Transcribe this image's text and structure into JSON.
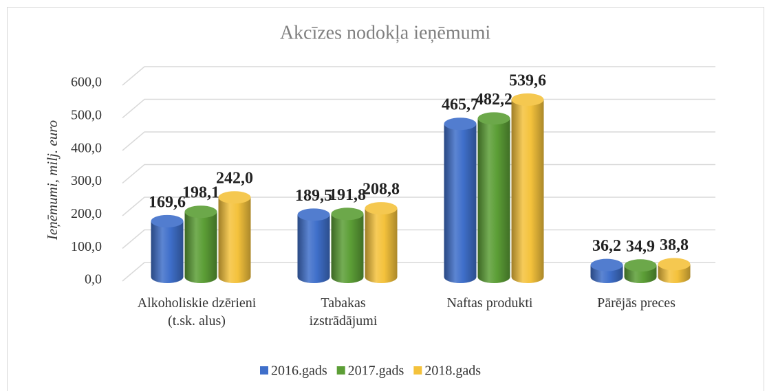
{
  "chart_data": {
    "type": "bar3d",
    "title": "Akcīzes nodokļa ieņēmumi",
    "y_label": "Ieņēmumi, milj. euro",
    "categories": [
      "Alkoholiskie dzērieni (t.sk. alus)",
      "Tabakas izstrādājumi",
      "Naftas produkti",
      "Pārējās preces"
    ],
    "series": [
      {
        "name": "2016.gads",
        "color": "#3f6fca",
        "values": [
          169.6,
          189.5,
          465.7,
          36.2
        ],
        "value_labels": [
          "169,6",
          "189,5",
          "465,7",
          "36,2"
        ]
      },
      {
        "name": "2017.gads",
        "color": "#5c9e36",
        "values": [
          198.1,
          191.8,
          482.2,
          34.9
        ],
        "value_labels": [
          "198,1",
          "191,8",
          "482,2",
          "34,9"
        ]
      },
      {
        "name": "2018.gads",
        "color": "#f4c23c",
        "values": [
          242.0,
          208.8,
          539.6,
          38.8
        ],
        "value_labels": [
          "242,0",
          "208,8",
          "539,6",
          "38,8"
        ]
      }
    ],
    "ylim": [
      0,
      600
    ],
    "yticks": [
      {
        "value": 0,
        "label": "0,0"
      },
      {
        "value": 100,
        "label": "100,0"
      },
      {
        "value": 200,
        "label": "200,0"
      },
      {
        "value": 300,
        "label": "300,0"
      },
      {
        "value": 400,
        "label": "400,0"
      },
      {
        "value": 500,
        "label": "500,0"
      },
      {
        "value": 600,
        "label": "600,0"
      }
    ],
    "grid": true,
    "legend": "bottom"
  }
}
